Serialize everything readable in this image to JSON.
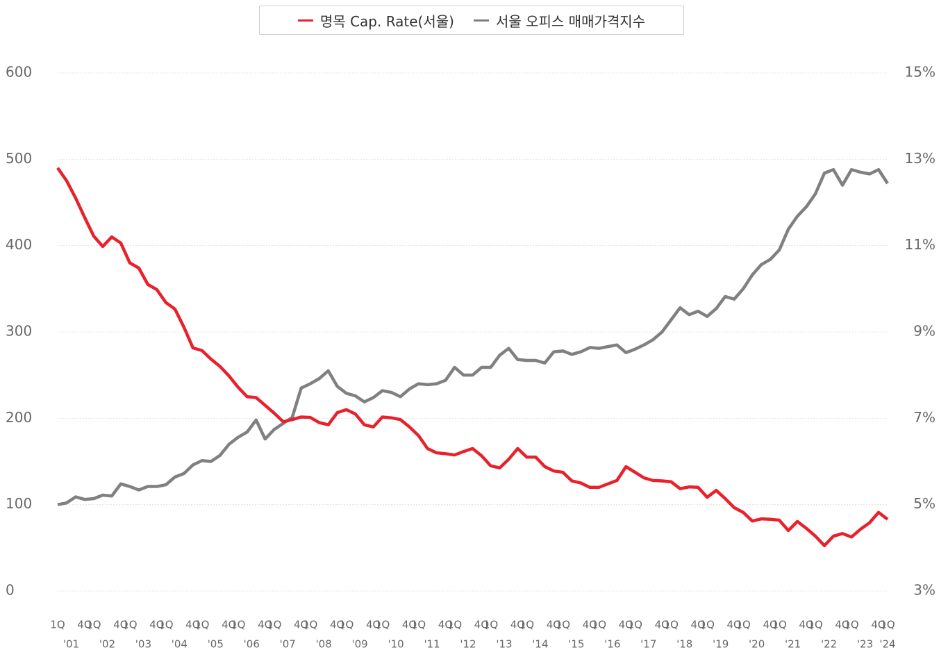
{
  "chart_data": {
    "type": "line",
    "categories": [
      "1Q",
      null,
      null,
      "4Q",
      "1Q",
      null,
      null,
      "4Q",
      "1Q",
      null,
      null,
      "4Q",
      "1Q",
      null,
      null,
      "4Q",
      "1Q",
      null,
      null,
      "4Q",
      "1Q",
      null,
      null,
      "4Q",
      "1Q",
      null,
      null,
      "4Q",
      "1Q",
      null,
      null,
      "4Q",
      "1Q",
      null,
      null,
      "4Q",
      "1Q",
      null,
      null,
      "4Q",
      "1Q",
      null,
      null,
      "4Q",
      "1Q",
      null,
      null,
      "4Q",
      "1Q",
      null,
      null,
      "4Q",
      "1Q",
      null,
      null,
      "4Q",
      "1Q",
      null,
      null,
      "4Q",
      "1Q",
      null,
      null,
      "4Q",
      "1Q",
      null,
      null,
      "4Q",
      "1Q",
      null,
      null,
      "4Q",
      "1Q",
      null,
      null,
      "4Q",
      "1Q",
      null,
      null,
      "4Q",
      "1Q",
      null,
      null,
      "4Q",
      "1Q",
      null,
      null,
      "4Q",
      "1Q",
      null,
      null,
      "4Q",
      "1Q"
    ],
    "year_labels": [
      "'01",
      "'02",
      "'03",
      "'04",
      "'05",
      "'06",
      "'07",
      "'08",
      "'09",
      "'10",
      "'11",
      "'12",
      "'13",
      "'14",
      "'15",
      "'16",
      "'17",
      "'18",
      "'19",
      "'20",
      "'21",
      "'22",
      "'23",
      "'24"
    ],
    "series": [
      {
        "name": "명목 Cap. Rate(서울)",
        "color": "#e8212b",
        "axis": "y2",
        "values": [
          12.8,
          12.5,
          12.1,
          11.65,
          11.22,
          10.98,
          11.2,
          11.06,
          10.6,
          10.48,
          10.1,
          9.98,
          9.68,
          9.53,
          9.11,
          8.63,
          8.57,
          8.37,
          8.2,
          7.98,
          7.72,
          7.5,
          7.48,
          7.3,
          7.12,
          6.92,
          6.97,
          7.03,
          7.02,
          6.9,
          6.85,
          7.13,
          7.2,
          7.1,
          6.85,
          6.8,
          7.03,
          7.01,
          6.97,
          6.8,
          6.6,
          6.3,
          6.2,
          6.18,
          6.15,
          6.23,
          6.3,
          6.13,
          5.9,
          5.85,
          6.05,
          6.3,
          6.1,
          6.1,
          5.88,
          5.78,
          5.75,
          5.55,
          5.5,
          5.4,
          5.4,
          5.48,
          5.56,
          5.88,
          5.75,
          5.62,
          5.56,
          5.55,
          5.53,
          5.37,
          5.41,
          5.4,
          5.17,
          5.33,
          5.14,
          4.93,
          4.82,
          4.62,
          4.67,
          4.66,
          4.64,
          4.4,
          4.61,
          4.45,
          4.27,
          4.05,
          4.27,
          4.33,
          4.25,
          4.43,
          4.58,
          4.82,
          4.66
        ]
      },
      {
        "name": "서울 오피스 매매가격지수",
        "color": "#808080",
        "values": [
          100,
          102,
          109,
          106,
          107,
          111,
          110,
          124,
          121,
          117,
          121,
          121,
          123,
          132,
          136,
          146,
          151,
          150,
          157,
          170,
          178,
          184,
          198,
          176,
          187,
          194,
          201,
          235,
          240,
          246,
          255,
          237,
          229,
          226,
          219,
          224,
          232,
          230,
          225,
          234,
          240,
          239,
          240,
          244,
          259,
          250,
          250,
          259,
          259,
          273,
          281,
          268,
          267,
          267,
          264,
          277,
          278,
          274,
          277,
          282,
          281,
          283,
          285,
          276,
          280,
          285,
          291,
          300,
          314,
          328,
          320,
          324,
          318,
          327,
          341,
          338,
          350,
          366,
          378,
          384,
          395,
          419,
          434,
          445,
          460,
          484,
          488,
          470,
          488,
          485,
          483,
          488,
          472
        ]
      }
    ],
    "ylim": [
      0,
      600
    ],
    "yticks": [
      0,
      100,
      200,
      300,
      400,
      500,
      600
    ],
    "y2lim": [
      3,
      15
    ],
    "y2ticks": [
      {
        "value": 3,
        "label": "3%"
      },
      {
        "value": 5,
        "label": "5%"
      },
      {
        "value": 7,
        "label": "7%"
      },
      {
        "value": 9,
        "label": "9%"
      },
      {
        "value": 11,
        "label": "11%"
      },
      {
        "value": 13,
        "label": "13%"
      },
      {
        "value": 15,
        "label": "15%"
      }
    ],
    "grid": true,
    "legend": "top"
  }
}
